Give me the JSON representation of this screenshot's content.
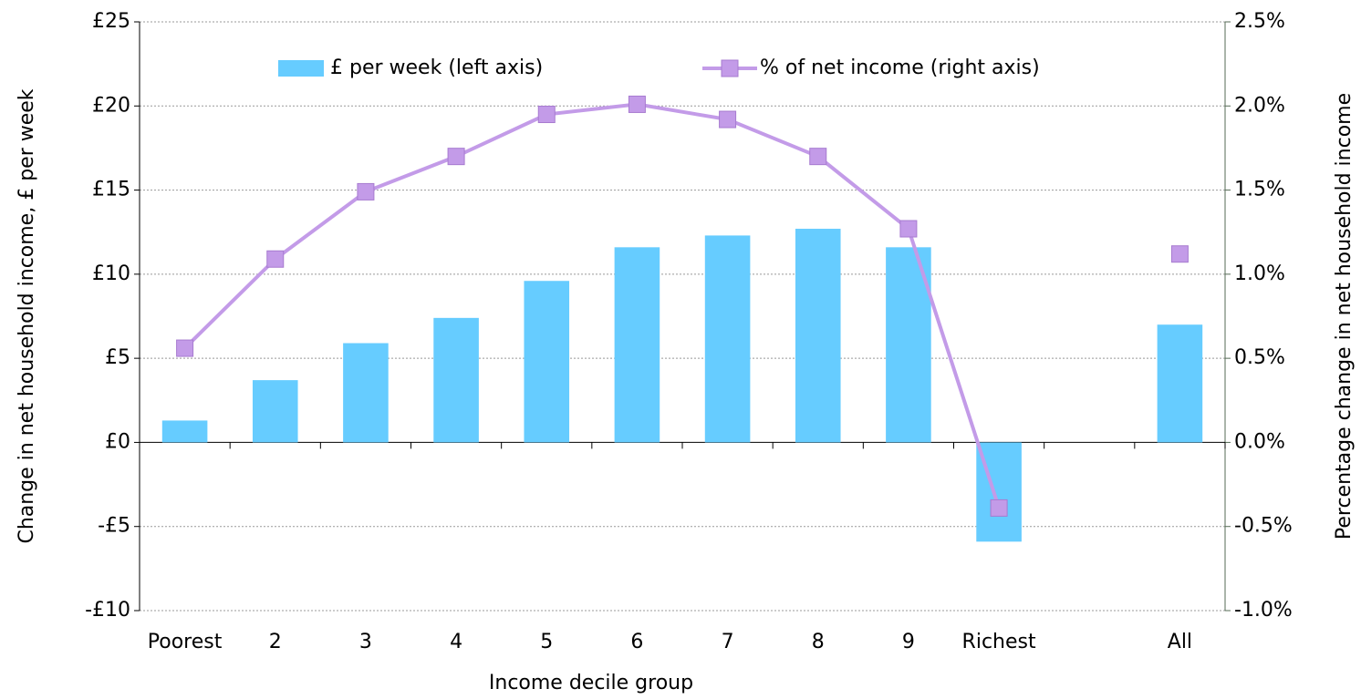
{
  "chart_data": {
    "type": "bar-line",
    "x_label": "Income decile group",
    "y_label": "Change in net household income, £ per week",
    "y2_label": "Percentage change in net household income",
    "categories": [
      "Poorest",
      "2",
      "3",
      "4",
      "5",
      "6",
      "7",
      "8",
      "9",
      "Richest",
      null,
      "All"
    ],
    "series": [
      {
        "name": "£ per week (left axis)",
        "type": "bar",
        "color": "#66ccff",
        "values": [
          1.3,
          3.7,
          5.9,
          7.4,
          9.6,
          11.6,
          12.3,
          12.7,
          11.6,
          -5.9,
          null,
          7.0
        ]
      },
      {
        "name": "% of net income (right axis)",
        "type": "line",
        "axis": "y2",
        "color": "#c39be8",
        "values": [
          0.56,
          1.09,
          1.49,
          1.7,
          1.95,
          2.01,
          1.92,
          1.7,
          1.27,
          -0.39,
          null,
          1.12
        ]
      }
    ],
    "ylim": [
      -10,
      25
    ],
    "yticks": [
      {
        "value": -10,
        "label": "-£10"
      },
      {
        "value": -5,
        "label": "-£5"
      },
      {
        "value": 0,
        "label": "£0"
      },
      {
        "value": 5,
        "label": "£5"
      },
      {
        "value": 10,
        "label": "£10"
      },
      {
        "value": 15,
        "label": "£15"
      },
      {
        "value": 20,
        "label": "£20"
      },
      {
        "value": 25,
        "label": "£25"
      }
    ],
    "y2lim": [
      -1.0,
      2.5
    ],
    "y2ticks": [
      {
        "value": -1.0,
        "label": "-1.0%"
      },
      {
        "value": -0.5,
        "label": "-0.5%"
      },
      {
        "value": 0,
        "label": "0.0%"
      },
      {
        "value": 0.5,
        "label": "0.5%"
      },
      {
        "value": 1.0,
        "label": "1.0%"
      },
      {
        "value": 1.5,
        "label": "1.5%"
      },
      {
        "value": 2.0,
        "label": "2.0%"
      },
      {
        "value": 2.5,
        "label": "2.5%"
      }
    ],
    "grid": true,
    "legend": "top"
  }
}
